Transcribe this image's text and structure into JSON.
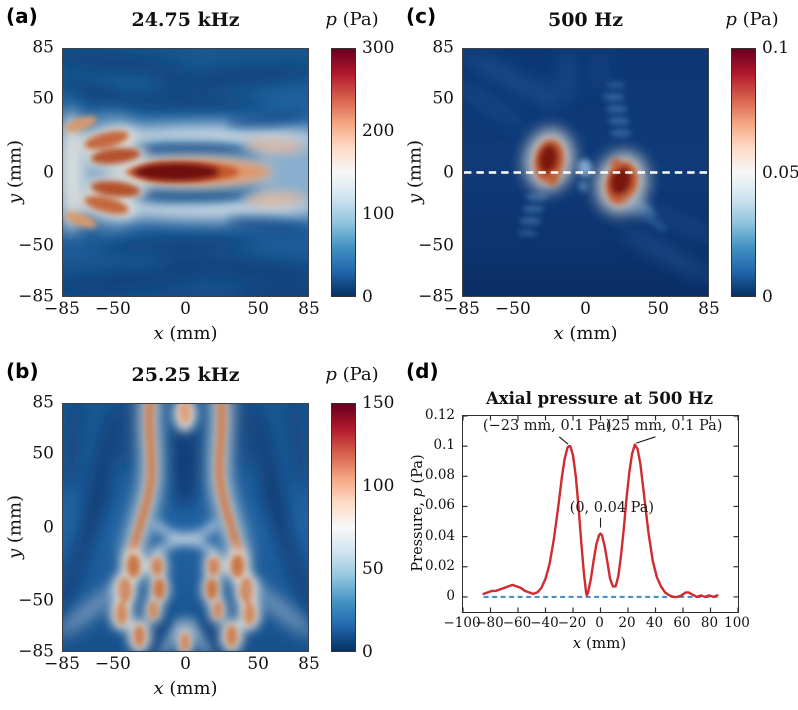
{
  "figure": {
    "background": "#ffffff"
  },
  "panels": {
    "a": {
      "label": "(a)",
      "title": "24.75 kHz",
      "x": {
        "var": "x",
        "unit": " (mm)",
        "lim": [
          -85,
          85
        ],
        "ticks": [
          {
            "value": -85,
            "label": "−85"
          },
          {
            "value": -50,
            "label": "−50"
          },
          {
            "value": 0,
            "label": "0"
          },
          {
            "value": 50,
            "label": "50"
          },
          {
            "value": 85,
            "label": "85"
          }
        ]
      },
      "y": {
        "var": "y",
        "unit": " (mm)",
        "lim": [
          -85,
          85
        ],
        "ticks": [
          {
            "value": -85,
            "label": "−85"
          },
          {
            "value": -50,
            "label": "−50"
          },
          {
            "value": 0,
            "label": "0"
          },
          {
            "value": 50,
            "label": "50"
          },
          {
            "value": 85,
            "label": "85"
          }
        ]
      },
      "cbar": {
        "var": "p",
        "unit": " (Pa)",
        "lim": [
          0,
          300
        ],
        "ticks": [
          {
            "value": 0,
            "label": "0"
          },
          {
            "value": 100,
            "label": "100"
          },
          {
            "value": 200,
            "label": "200"
          },
          {
            "value": 300,
            "label": "300"
          }
        ]
      }
    },
    "b": {
      "label": "(b)",
      "title": "25.25 kHz",
      "x": {
        "var": "x",
        "unit": " (mm)",
        "lim": [
          -85,
          85
        ],
        "ticks": [
          {
            "value": -85,
            "label": "−85"
          },
          {
            "value": -50,
            "label": "−50"
          },
          {
            "value": 0,
            "label": "0"
          },
          {
            "value": 50,
            "label": "50"
          },
          {
            "value": 85,
            "label": "85"
          }
        ]
      },
      "y": {
        "var": "y",
        "unit": " (mm)",
        "lim": [
          -85,
          85
        ],
        "ticks": [
          {
            "value": -85,
            "label": "−85"
          },
          {
            "value": -50,
            "label": "−50"
          },
          {
            "value": 0,
            "label": "0"
          },
          {
            "value": 50,
            "label": "50"
          },
          {
            "value": 85,
            "label": "85"
          }
        ]
      },
      "cbar": {
        "var": "p",
        "unit": " (Pa)",
        "lim": [
          0,
          150
        ],
        "ticks": [
          {
            "value": 0,
            "label": "0"
          },
          {
            "value": 50,
            "label": "50"
          },
          {
            "value": 100,
            "label": "100"
          },
          {
            "value": 150,
            "label": "150"
          }
        ]
      }
    },
    "c": {
      "label": "(c)",
      "title": "500 Hz",
      "x": {
        "var": "x",
        "unit": " (mm)",
        "lim": [
          -85,
          85
        ],
        "ticks": [
          {
            "value": -85,
            "label": "−85"
          },
          {
            "value": -50,
            "label": "−50"
          },
          {
            "value": 0,
            "label": "0"
          },
          {
            "value": 50,
            "label": "50"
          },
          {
            "value": 85,
            "label": "85"
          }
        ]
      },
      "y": {
        "var": "y",
        "unit": " (mm)",
        "lim": [
          -85,
          85
        ],
        "ticks": [
          {
            "value": -85,
            "label": "−85"
          },
          {
            "value": -50,
            "label": "−50"
          },
          {
            "value": 0,
            "label": "0"
          },
          {
            "value": 50,
            "label": "50"
          },
          {
            "value": 85,
            "label": "85"
          }
        ]
      },
      "cbar": {
        "var": "p",
        "unit": " (Pa)",
        "lim": [
          0,
          0.1
        ],
        "ticks": [
          {
            "value": 0,
            "label": "0"
          },
          {
            "value": 0.05,
            "label": "0.05"
          },
          {
            "value": 0.1,
            "label": "0.1"
          }
        ]
      }
    },
    "d": {
      "label": "(d)",
      "title": "Axial pressure at 500 Hz",
      "x": {
        "var": "x",
        "unit": " (mm)",
        "lim": [
          -100,
          100
        ],
        "ticks": [
          {
            "value": -100,
            "label": "−100"
          },
          {
            "value": -80,
            "label": "−80"
          },
          {
            "value": -60,
            "label": "−60"
          },
          {
            "value": -40,
            "label": "−40"
          },
          {
            "value": -20,
            "label": "−20"
          },
          {
            "value": 0,
            "label": "0"
          },
          {
            "value": 20,
            "label": "20"
          },
          {
            "value": 40,
            "label": "40"
          },
          {
            "value": 60,
            "label": "60"
          },
          {
            "value": 80,
            "label": "80"
          },
          {
            "value": 100,
            "label": "100"
          }
        ]
      },
      "y": {
        "prefix": "Pressure, ",
        "var": "p",
        "unit": " (Pa)",
        "lim": [
          -0.01,
          0.12
        ],
        "ticks": [
          {
            "value": 0,
            "label": "0"
          },
          {
            "value": 0.02,
            "label": "0.02"
          },
          {
            "value": 0.04,
            "label": "0.04"
          },
          {
            "value": 0.06,
            "label": "0.06"
          },
          {
            "value": 0.08,
            "label": "0.08"
          },
          {
            "value": 0.1,
            "label": "0.1"
          },
          {
            "value": 0.12,
            "label": "0.12"
          }
        ]
      },
      "annotations": [
        {
          "label": "(−23 mm, 0.1 Pa)",
          "tx": -38,
          "ty": 0.1125,
          "leader": [
            [
              -30,
              0.1062
            ],
            [
              -23.5,
              0.1013
            ]
          ]
        },
        {
          "label": "(25 mm, 0.1 Pa)",
          "tx": 47,
          "ty": 0.1125,
          "leader": [
            [
              40,
              0.1062
            ],
            [
              26,
              0.102
            ]
          ]
        },
        {
          "label": "(0, 0.04 Pa)",
          "tx": 9,
          "ty": 0.0585,
          "leader": [
            [
              0,
              0.0525
            ],
            [
              0,
              0.046
            ]
          ]
        }
      ]
    }
  },
  "chart_data": [
    {
      "type": "heatmap",
      "panel": "(a)",
      "title": "24.75 kHz",
      "xlabel": "x (mm)",
      "ylabel": "y (mm)",
      "xlim": [
        -85,
        85
      ],
      "ylim": [
        -85,
        85
      ],
      "colormap": "RdBu_r",
      "colorbar_label": "p (Pa)",
      "clim": [
        0,
        300
      ],
      "cticks": [
        0,
        100,
        200,
        300
      ],
      "features": [
        {
          "name": "central focal lobe",
          "center": [
            0,
            0
          ],
          "extent_x": [
            -40,
            45
          ],
          "peak_Pa": 300
        },
        {
          "name": "left side lobes",
          "x_range": [
            -80,
            -30
          ],
          "y_positions": [
            -25,
            -12,
            12,
            25
          ],
          "approx_Pa": 190
        },
        {
          "name": "white horizontal bands",
          "y_positions": [
            -25,
            25
          ],
          "approx_Pa": 150
        },
        {
          "name": "background field",
          "approx_Pa": 60
        }
      ]
    },
    {
      "type": "heatmap",
      "panel": "(b)",
      "title": "25.25 kHz",
      "xlabel": "x (mm)",
      "ylabel": "y (mm)",
      "xlim": [
        -85,
        85
      ],
      "ylim": [
        -85,
        85
      ],
      "colormap": "RdBu_r",
      "colorbar_label": "p (Pa)",
      "clim": [
        0,
        150
      ],
      "cticks": [
        0,
        50,
        100,
        150
      ],
      "features": [
        {
          "name": "twin vertical lobes",
          "x_positions": [
            -26,
            26
          ],
          "y_extent": [
            -15,
            85
          ],
          "approx_Pa": 110
        },
        {
          "name": "lower blob chains",
          "x_range": [
            -45,
            45
          ],
          "y_extent": [
            -85,
            -15
          ],
          "approx_Pa": 100
        },
        {
          "name": "dark null on axis",
          "center": [
            0,
            30
          ],
          "approx_Pa": 15
        }
      ]
    },
    {
      "type": "heatmap",
      "panel": "(c)",
      "title": "500 Hz",
      "xlabel": "x (mm)",
      "ylabel": "y (mm)",
      "xlim": [
        -85,
        85
      ],
      "ylim": [
        -85,
        85
      ],
      "colormap": "RdBu_r",
      "colorbar_label": "p (Pa)",
      "clim": [
        0,
        0.1
      ],
      "cticks": [
        0,
        0.05,
        0.1
      ],
      "features": [
        {
          "name": "left focus",
          "center": [
            -25,
            6
          ],
          "peak_Pa": 0.1
        },
        {
          "name": "right focus",
          "center": [
            26,
            -7
          ],
          "peak_Pa": 0.1
        },
        {
          "name": "dashed cut line",
          "y": 0,
          "style": "white dashed"
        },
        {
          "name": "background field",
          "approx_Pa": 0.01
        }
      ]
    },
    {
      "type": "line",
      "panel": "(d)",
      "title": "Axial pressure at 500 Hz",
      "xlabel": "x (mm)",
      "ylabel": "Pressure, p (Pa)",
      "xlim": [
        -100,
        100
      ],
      "ylim": [
        -0.01,
        0.12
      ],
      "grid": false,
      "legend": "none",
      "xticks": [
        -100,
        -80,
        -60,
        -40,
        -20,
        0,
        20,
        40,
        60,
        80,
        100
      ],
      "yticks": [
        0,
        0.02,
        0.04,
        0.06,
        0.08,
        0.1,
        0.12
      ],
      "baseline": {
        "y": 0,
        "x_range": [
          -85,
          85
        ],
        "color": "#4a90c8",
        "style": "dashed"
      },
      "series": [
        {
          "name": "axial pressure",
          "color": "#cf2b30",
          "points": [
            [
              -85,
              0.002
            ],
            [
              -82,
              0.003
            ],
            [
              -79,
              0.004
            ],
            [
              -76,
              0.004
            ],
            [
              -73,
              0.005
            ],
            [
              -70,
              0.006
            ],
            [
              -67,
              0.007
            ],
            [
              -64,
              0.008
            ],
            [
              -61,
              0.007
            ],
            [
              -58,
              0.006
            ],
            [
              -55,
              0.004
            ],
            [
              -52,
              0.003
            ],
            [
              -49,
              0.002
            ],
            [
              -46,
              0.003
            ],
            [
              -43,
              0.006
            ],
            [
              -40,
              0.012
            ],
            [
              -37,
              0.022
            ],
            [
              -34,
              0.038
            ],
            [
              -31,
              0.058
            ],
            [
              -28,
              0.08
            ],
            [
              -26,
              0.092
            ],
            [
              -24,
              0.099
            ],
            [
              -23,
              0.1
            ],
            [
              -22,
              0.1
            ],
            [
              -20,
              0.094
            ],
            [
              -18,
              0.08
            ],
            [
              -16,
              0.06
            ],
            [
              -14,
              0.036
            ],
            [
              -12,
              0.015
            ],
            [
              -10.5,
              0.003
            ],
            [
              -10,
              0.001
            ],
            [
              -9,
              0.003
            ],
            [
              -7,
              0.012
            ],
            [
              -5,
              0.024
            ],
            [
              -3,
              0.035
            ],
            [
              -1,
              0.041
            ],
            [
              0,
              0.042
            ],
            [
              1,
              0.041
            ],
            [
              3,
              0.034
            ],
            [
              5,
              0.023
            ],
            [
              7,
              0.012
            ],
            [
              9,
              0.007
            ],
            [
              11,
              0.007
            ],
            [
              13,
              0.014
            ],
            [
              15,
              0.028
            ],
            [
              17,
              0.046
            ],
            [
              19,
              0.066
            ],
            [
              21,
              0.083
            ],
            [
              23,
              0.095
            ],
            [
              25,
              0.101
            ],
            [
              27,
              0.098
            ],
            [
              29,
              0.088
            ],
            [
              31,
              0.073
            ],
            [
              33,
              0.057
            ],
            [
              35,
              0.042
            ],
            [
              38,
              0.024
            ],
            [
              41,
              0.013
            ],
            [
              44,
              0.007
            ],
            [
              47,
              0.003
            ],
            [
              50,
              0.001
            ],
            [
              53,
              0
            ],
            [
              56,
              0
            ],
            [
              59,
              0.001
            ],
            [
              62,
              0.003
            ],
            [
              64,
              0.003
            ],
            [
              66,
              0.002
            ],
            [
              68,
              0.001
            ],
            [
              70,
              0
            ],
            [
              73,
              0.001
            ],
            [
              76,
              0
            ],
            [
              79,
              0.001
            ],
            [
              82,
              0
            ],
            [
              85,
              0.001
            ]
          ]
        }
      ],
      "annotations": [
        "(−23 mm, 0.1 Pa)",
        "(25 mm, 0.1 Pa)",
        "(0, 0.04 Pa)"
      ]
    }
  ]
}
